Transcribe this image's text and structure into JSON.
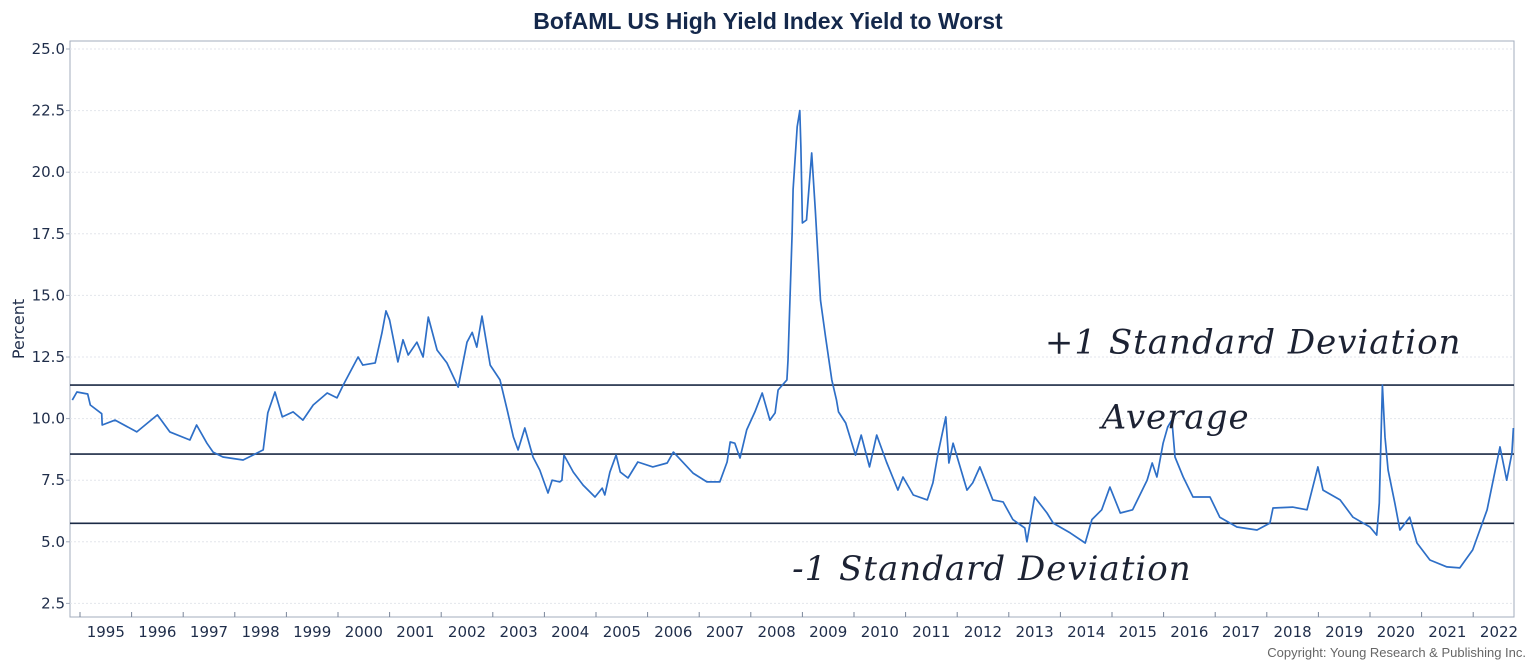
{
  "chart_data": {
    "type": "line",
    "title": "BofAML US High Yield Index Yield to Worst",
    "xlabel": "",
    "ylabel": "Percent",
    "xlim": [
      1994.85,
      2022.8
    ],
    "ylim": [
      2.0,
      25.5
    ],
    "yticks": [
      "2.5",
      "5.0",
      "7.5",
      "10.0",
      "12.5",
      "15.0",
      "17.5",
      "20.0",
      "22.5",
      "25.0"
    ],
    "xticks": [
      "1995",
      "1996",
      "1997",
      "1998",
      "1999",
      "2000",
      "2001",
      "2002",
      "2003",
      "2004",
      "2005",
      "2006",
      "2007",
      "2008",
      "2009",
      "2010",
      "2011",
      "2012",
      "2013",
      "2014",
      "2015",
      "2016",
      "2017",
      "2018",
      "2019",
      "2020",
      "2021",
      "2022"
    ],
    "grid": true,
    "line_color": "#2e6fc7",
    "reference_line_color": "#1b2a45",
    "reference_lines": [
      {
        "label": "+1 Standard Deviation",
        "value": 11.36
      },
      {
        "label": "Average",
        "value": 8.56
      },
      {
        "label": "-1 Standard Deviation",
        "value": 5.75
      }
    ],
    "annotations": [
      {
        "text": "+1 Standard Deviation",
        "x": 2013.7,
        "y": 12.65
      },
      {
        "text": "Average",
        "x": 2014.8,
        "y": 9.6
      },
      {
        "text": "-1 Standard Deviation",
        "x": 2008.8,
        "y": 3.45
      }
    ],
    "series": [
      {
        "x": [
          1994.85,
          1994.94,
          1995.15,
          1995.2,
          1995.42,
          1995.43,
          1995.68,
          1996.1,
          1996.5,
          1996.74,
          1997.13,
          1997.26,
          1997.46,
          1997.58,
          1997.77,
          1998.16,
          1998.35,
          1998.55,
          1998.64,
          1998.78,
          1998.92,
          1999.13,
          1999.32,
          1999.52,
          1999.79,
          1999.98,
          2000.1,
          2000.39,
          2000.48,
          2000.72,
          2000.85,
          2000.93,
          2001.0,
          2001.16,
          2001.26,
          2001.36,
          2001.53,
          2001.65,
          2001.75,
          2001.92,
          2002.11,
          2002.33,
          2002.5,
          2002.6,
          2002.69,
          2002.79,
          2002.95,
          2003.14,
          2003.28,
          2003.4,
          2003.49,
          2003.62,
          2003.78,
          2003.91,
          2004.07,
          2004.15,
          2004.3,
          2004.34,
          2004.38,
          2004.56,
          2004.75,
          2004.98,
          2005.12,
          2005.17,
          2005.27,
          2005.39,
          2005.47,
          2005.62,
          2005.81,
          2006.1,
          2006.38,
          2006.5,
          2006.88,
          2007.15,
          2007.4,
          2007.54,
          2007.6,
          2007.69,
          2007.79,
          2007.92,
          2008.08,
          2008.22,
          2008.37,
          2008.47,
          2008.53,
          2008.7,
          2008.72,
          2008.8,
          2008.82,
          2008.9,
          2008.95,
          2008.97,
          2009.0,
          2009.08,
          2009.18,
          2009.25,
          2009.35,
          2009.45,
          2009.57,
          2009.66,
          2009.7,
          2009.84,
          2010.03,
          2010.14,
          2010.3,
          2010.44,
          2010.63,
          2010.85,
          2010.95,
          2011.15,
          2011.42,
          2011.53,
          2011.63,
          2011.78,
          2011.84,
          2011.92,
          2012.19,
          2012.3,
          2012.44,
          2012.69,
          2012.89,
          2013.08,
          2013.31,
          2013.35,
          2013.5,
          2013.74,
          2013.86,
          2014.19,
          2014.48,
          2014.61,
          2014.8,
          2014.96,
          2015.16,
          2015.4,
          2015.68,
          2015.78,
          2015.87,
          2015.99,
          2016.08,
          2016.16,
          2016.22,
          2016.38,
          2016.57,
          2016.9,
          2017.09,
          2017.42,
          2017.81,
          2018.06,
          2018.12,
          2018.5,
          2018.78,
          2018.99,
          2019.09,
          2019.42,
          2019.67,
          2020.0,
          2020.13,
          2020.18,
          2020.24,
          2020.29,
          2020.35,
          2020.48,
          2020.58,
          2020.77,
          2020.91,
          2021.16,
          2021.49,
          2021.74,
          2021.99,
          2022.27,
          2022.52,
          2022.65,
          2022.75,
          2022.78
        ],
        "y": [
          10.75,
          11.08,
          11.0,
          10.55,
          10.2,
          9.74,
          9.94,
          9.46,
          10.15,
          9.46,
          9.13,
          9.74,
          9.0,
          8.64,
          8.44,
          8.32,
          8.52,
          8.73,
          10.23,
          11.08,
          10.07,
          10.27,
          9.94,
          10.55,
          11.04,
          10.84,
          11.36,
          12.5,
          12.17,
          12.26,
          13.47,
          14.37,
          14.0,
          12.3,
          13.2,
          12.58,
          13.1,
          12.5,
          14.12,
          12.78,
          12.26,
          11.28,
          13.1,
          13.5,
          12.9,
          14.16,
          12.17,
          11.57,
          10.35,
          9.25,
          8.73,
          9.62,
          8.44,
          7.91,
          6.98,
          7.5,
          7.43,
          7.5,
          8.52,
          7.83,
          7.3,
          6.82,
          7.18,
          6.9,
          7.83,
          8.52,
          7.83,
          7.59,
          8.24,
          8.04,
          8.2,
          8.64,
          7.79,
          7.43,
          7.43,
          8.24,
          9.05,
          9.0,
          8.4,
          9.54,
          10.27,
          11.04,
          9.94,
          10.23,
          11.16,
          11.57,
          12.37,
          17.5,
          19.3,
          21.85,
          22.5,
          21.0,
          17.94,
          18.06,
          20.78,
          18.47,
          14.8,
          13.3,
          11.57,
          10.75,
          10.27,
          9.82,
          8.52,
          9.33,
          8.04,
          9.33,
          8.24,
          7.1,
          7.63,
          6.9,
          6.7,
          7.39,
          8.6,
          10.07,
          8.2,
          9.0,
          7.1,
          7.39,
          8.04,
          6.7,
          6.62,
          5.9,
          5.56,
          5.0,
          6.82,
          6.17,
          5.76,
          5.36,
          4.95,
          5.9,
          6.3,
          7.22,
          6.17,
          6.3,
          7.5,
          8.2,
          7.63,
          9.0,
          9.66,
          9.94,
          8.44,
          7.63,
          6.82,
          6.82,
          6.0,
          5.6,
          5.48,
          5.76,
          6.37,
          6.41,
          6.3,
          8.04,
          7.1,
          6.7,
          6.0,
          5.6,
          5.27,
          6.58,
          11.36,
          9.25,
          7.91,
          6.58,
          5.48,
          6.0,
          4.95,
          4.26,
          3.98,
          3.94,
          4.67,
          6.3,
          8.85,
          7.5,
          8.6,
          9.62
        ]
      }
    ]
  },
  "footer": {
    "copyright": "Copyright: Young Research & Publishing Inc."
  }
}
